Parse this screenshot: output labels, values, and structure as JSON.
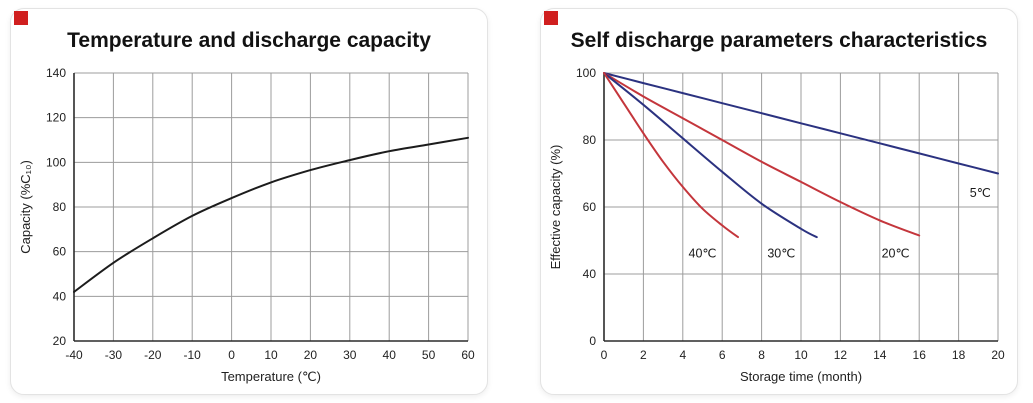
{
  "page": {
    "background": "#ffffff",
    "corner_marker_color": "#d01f1f"
  },
  "chart_data": [
    {
      "type": "line",
      "title": "Temperature and discharge capacity",
      "xlabel": "Temperature (℃)",
      "ylabel": "Capacity (%C₁₀)",
      "xlim": [
        -40,
        60
      ],
      "ylim": [
        20,
        140
      ],
      "x_ticks": [
        -40,
        -30,
        -20,
        -10,
        0,
        10,
        20,
        30,
        40,
        50,
        60
      ],
      "y_ticks": [
        20,
        40,
        60,
        80,
        100,
        120,
        140
      ],
      "grid": true,
      "legend": "none",
      "colors": {
        "grid": "#9c9c9c",
        "axis": "#2b2b2b",
        "text": "#222222"
      },
      "series": [
        {
          "name": "discharge-capacity",
          "color": "#1c1c1c",
          "x": [
            -40,
            -30,
            -20,
            -10,
            0,
            10,
            20,
            30,
            40,
            50,
            60
          ],
          "y": [
            42,
            55,
            66,
            76,
            84,
            91,
            96.5,
            101,
            105,
            108,
            111
          ]
        }
      ]
    },
    {
      "type": "line",
      "title": "Self discharge parameters characteristics",
      "xlabel": "Storage time (month)",
      "ylabel": "Effective capacity (%)",
      "xlim": [
        0,
        20
      ],
      "ylim": [
        0,
        100
      ],
      "x_ticks": [
        0,
        2,
        4,
        6,
        8,
        10,
        12,
        14,
        16,
        18,
        20
      ],
      "y_ticks": [
        0,
        40,
        60,
        80,
        100
      ],
      "y_tick_spacing": "even",
      "grid": true,
      "legend": "inline-labels",
      "colors": {
        "grid": "#9c9c9c",
        "axis": "#2b2b2b",
        "text": "#222222"
      },
      "series": [
        {
          "name": "5C",
          "label": "5℃",
          "label_at": [
            19.1,
            63
          ],
          "color": "#2b3280",
          "x": [
            0,
            2,
            4,
            6,
            8,
            10,
            12,
            14,
            16,
            18,
            20
          ],
          "y": [
            100,
            97,
            94,
            91,
            88,
            85,
            82,
            79,
            76,
            73,
            70
          ]
        },
        {
          "name": "20C",
          "label": "20℃",
          "label_at": [
            14.8,
            45
          ],
          "color": "#c4363c",
          "x": [
            0,
            2,
            4,
            6,
            8,
            10,
            12,
            14,
            16
          ],
          "y": [
            100,
            93,
            86.5,
            80,
            73.5,
            67.5,
            61.5,
            56,
            51.5
          ]
        },
        {
          "name": "30C",
          "label": "30℃",
          "label_at": [
            9.0,
            45
          ],
          "color": "#2b3280",
          "x": [
            0,
            2,
            4,
            6,
            8,
            10,
            10.8
          ],
          "y": [
            100,
            90.5,
            80.5,
            70.5,
            61,
            53.5,
            51
          ]
        },
        {
          "name": "40C",
          "label": "40℃",
          "label_at": [
            5.0,
            45
          ],
          "color": "#c4363c",
          "x": [
            0,
            1,
            2,
            3,
            4,
            5,
            6,
            6.8
          ],
          "y": [
            100,
            91,
            82,
            73.5,
            66,
            59.5,
            54.5,
            51
          ]
        }
      ]
    }
  ]
}
